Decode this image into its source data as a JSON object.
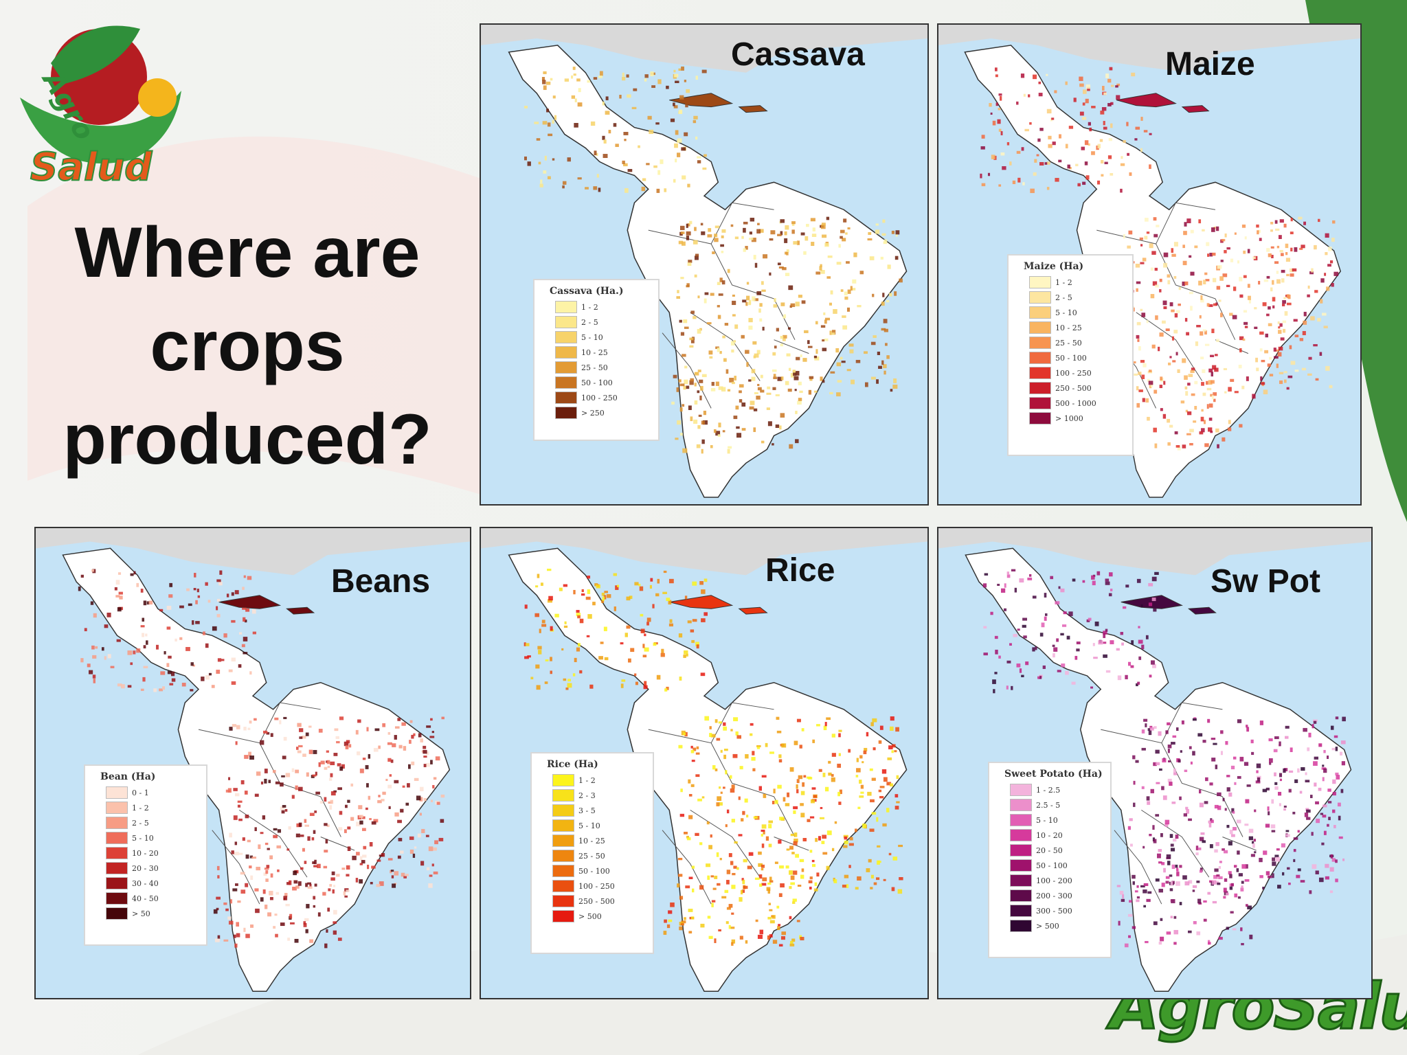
{
  "slide": {
    "title_lines": [
      "Where are",
      "crops",
      "produced?"
    ],
    "logo_text": "AgroSalud",
    "footer_logo_text": "AgroSalud",
    "colors": {
      "background": "#f6f4f1",
      "sea": "#c5e3f6",
      "land": "#ffffff",
      "green_logo": "#3e9a2a",
      "border": "#333333"
    }
  },
  "maps": [
    {
      "id": "cassava",
      "title": "Cassava",
      "legend": {
        "title": "Cassava (Ha.)",
        "items": [
          {
            "label": "1 - 2",
            "color": "#fdf3a6"
          },
          {
            "label": "2 - 5",
            "color": "#fbe78a"
          },
          {
            "label": "5 - 10",
            "color": "#f7d36a"
          },
          {
            "label": "10 - 25",
            "color": "#efb849"
          },
          {
            "label": "25 - 50",
            "color": "#e39b34"
          },
          {
            "label": "50 - 100",
            "color": "#c97522"
          },
          {
            "label": "100 - 250",
            "color": "#9d4916"
          },
          {
            "label": "> 250",
            "color": "#6b1e0c"
          }
        ]
      }
    },
    {
      "id": "maize",
      "title": "Maize",
      "legend": {
        "title": "Maize (Ha)",
        "items": [
          {
            "label": "1 - 2",
            "color": "#fff6c2"
          },
          {
            "label": "2 - 5",
            "color": "#fde6a0"
          },
          {
            "label": "5 - 10",
            "color": "#fbcf7c"
          },
          {
            "label": "10 - 25",
            "color": "#f9b460"
          },
          {
            "label": "25 - 50",
            "color": "#f79450"
          },
          {
            "label": "50 - 100",
            "color": "#f06a3e"
          },
          {
            "label": "100 - 250",
            "color": "#e2352a"
          },
          {
            "label": "250 - 500",
            "color": "#cc1f2a"
          },
          {
            "label": "500 - 1000",
            "color": "#b0123a"
          },
          {
            "label": "> 1000",
            "color": "#8e0b3d"
          }
        ]
      }
    },
    {
      "id": "beans",
      "title": "Beans",
      "legend": {
        "title": "Bean (Ha)",
        "items": [
          {
            "label": "0 - 1",
            "color": "#fde3d6"
          },
          {
            "label": "1 - 2",
            "color": "#fbc1ab"
          },
          {
            "label": "2 - 5",
            "color": "#f79c84"
          },
          {
            "label": "5 - 10",
            "color": "#ef6d5a"
          },
          {
            "label": "10 - 20",
            "color": "#dd4136"
          },
          {
            "label": "20 - 30",
            "color": "#c22423"
          },
          {
            "label": "30 - 40",
            "color": "#9b1418"
          },
          {
            "label": "40 - 50",
            "color": "#6e0b10"
          },
          {
            "label": "> 50",
            "color": "#45060a"
          }
        ]
      }
    },
    {
      "id": "rice",
      "title": "Rice",
      "legend": {
        "title": "Rice (Ha)",
        "items": [
          {
            "label": "1 - 2",
            "color": "#fcf41c"
          },
          {
            "label": "2 - 3",
            "color": "#f8e21a"
          },
          {
            "label": "3 - 5",
            "color": "#f4cc16"
          },
          {
            "label": "5 - 10",
            "color": "#f2b412"
          },
          {
            "label": "10 - 25",
            "color": "#f09e10"
          },
          {
            "label": "25 - 50",
            "color": "#ee8610"
          },
          {
            "label": "50 - 100",
            "color": "#ec6c10"
          },
          {
            "label": "100 - 250",
            "color": "#ea5010"
          },
          {
            "label": "250 - 500",
            "color": "#e83410"
          },
          {
            "label": "> 500",
            "color": "#e61a10"
          }
        ]
      }
    },
    {
      "id": "swpot",
      "title": "Sw Pot",
      "legend": {
        "title": "Sweet Potato (Ha)",
        "items": [
          {
            "label": "1 - 2.5",
            "color": "#f3b3dc"
          },
          {
            "label": "2.5 - 5",
            "color": "#ec8fcb"
          },
          {
            "label": "5 - 10",
            "color": "#e25fb4"
          },
          {
            "label": "10 - 20",
            "color": "#d63a9c"
          },
          {
            "label": "20 - 50",
            "color": "#bf1f83"
          },
          {
            "label": "50 - 100",
            "color": "#9f126c"
          },
          {
            "label": "100 - 200",
            "color": "#7d0d5a"
          },
          {
            "label": "200 - 300",
            "color": "#5e0a4a"
          },
          {
            "label": "300 - 500",
            "color": "#45083f"
          },
          {
            "label": "> 500",
            "color": "#2f0632"
          }
        ]
      }
    }
  ]
}
